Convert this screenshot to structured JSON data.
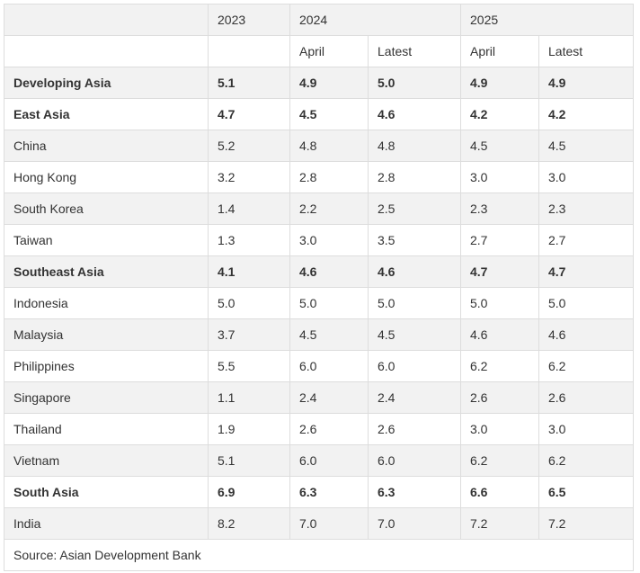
{
  "table": {
    "year_headers": [
      "",
      "2023",
      "2024",
      "2025"
    ],
    "sub_headers": [
      "",
      "",
      "April",
      "Latest",
      "April",
      "Latest"
    ],
    "rows": [
      {
        "label": "Developing Asia",
        "bold": true,
        "values": [
          "5.1",
          "4.9",
          "5.0",
          "4.9",
          "4.9"
        ]
      },
      {
        "label": "East Asia",
        "bold": true,
        "values": [
          "4.7",
          "4.5",
          "4.6",
          "4.2",
          "4.2"
        ]
      },
      {
        "label": "China",
        "bold": false,
        "values": [
          "5.2",
          "4.8",
          "4.8",
          "4.5",
          "4.5"
        ]
      },
      {
        "label": "Hong Kong",
        "bold": false,
        "values": [
          "3.2",
          "2.8",
          "2.8",
          "3.0",
          "3.0"
        ]
      },
      {
        "label": "South Korea",
        "bold": false,
        "values": [
          "1.4",
          "2.2",
          "2.5",
          "2.3",
          "2.3"
        ]
      },
      {
        "label": "Taiwan",
        "bold": false,
        "values": [
          "1.3",
          "3.0",
          "3.5",
          "2.7",
          "2.7"
        ]
      },
      {
        "label": "Southeast Asia",
        "bold": true,
        "values": [
          "4.1",
          "4.6",
          "4.6",
          "4.7",
          "4.7"
        ]
      },
      {
        "label": "Indonesia",
        "bold": false,
        "values": [
          "5.0",
          "5.0",
          "5.0",
          "5.0",
          "5.0"
        ]
      },
      {
        "label": "Malaysia",
        "bold": false,
        "values": [
          "3.7",
          "4.5",
          "4.5",
          "4.6",
          "4.6"
        ]
      },
      {
        "label": "Philippines",
        "bold": false,
        "values": [
          "5.5",
          "6.0",
          "6.0",
          "6.2",
          "6.2"
        ]
      },
      {
        "label": "Singapore",
        "bold": false,
        "values": [
          "1.1",
          "2.4",
          "2.4",
          "2.6",
          "2.6"
        ]
      },
      {
        "label": "Thailand",
        "bold": false,
        "values": [
          "1.9",
          "2.6",
          "2.6",
          "3.0",
          "3.0"
        ]
      },
      {
        "label": "Vietnam",
        "bold": false,
        "values": [
          "5.1",
          "6.0",
          "6.0",
          "6.2",
          "6.2"
        ]
      },
      {
        "label": "South Asia",
        "bold": true,
        "values": [
          "6.9",
          "6.3",
          "6.3",
          "6.6",
          "6.5"
        ]
      },
      {
        "label": "India",
        "bold": false,
        "values": [
          "8.2",
          "7.0",
          "7.0",
          "7.2",
          "7.2"
        ]
      }
    ],
    "source": "Source: Asian Development Bank"
  },
  "colors": {
    "text": "#333333",
    "border": "#dddddd",
    "row_shade": "#f2f2f2",
    "background": "#ffffff"
  }
}
